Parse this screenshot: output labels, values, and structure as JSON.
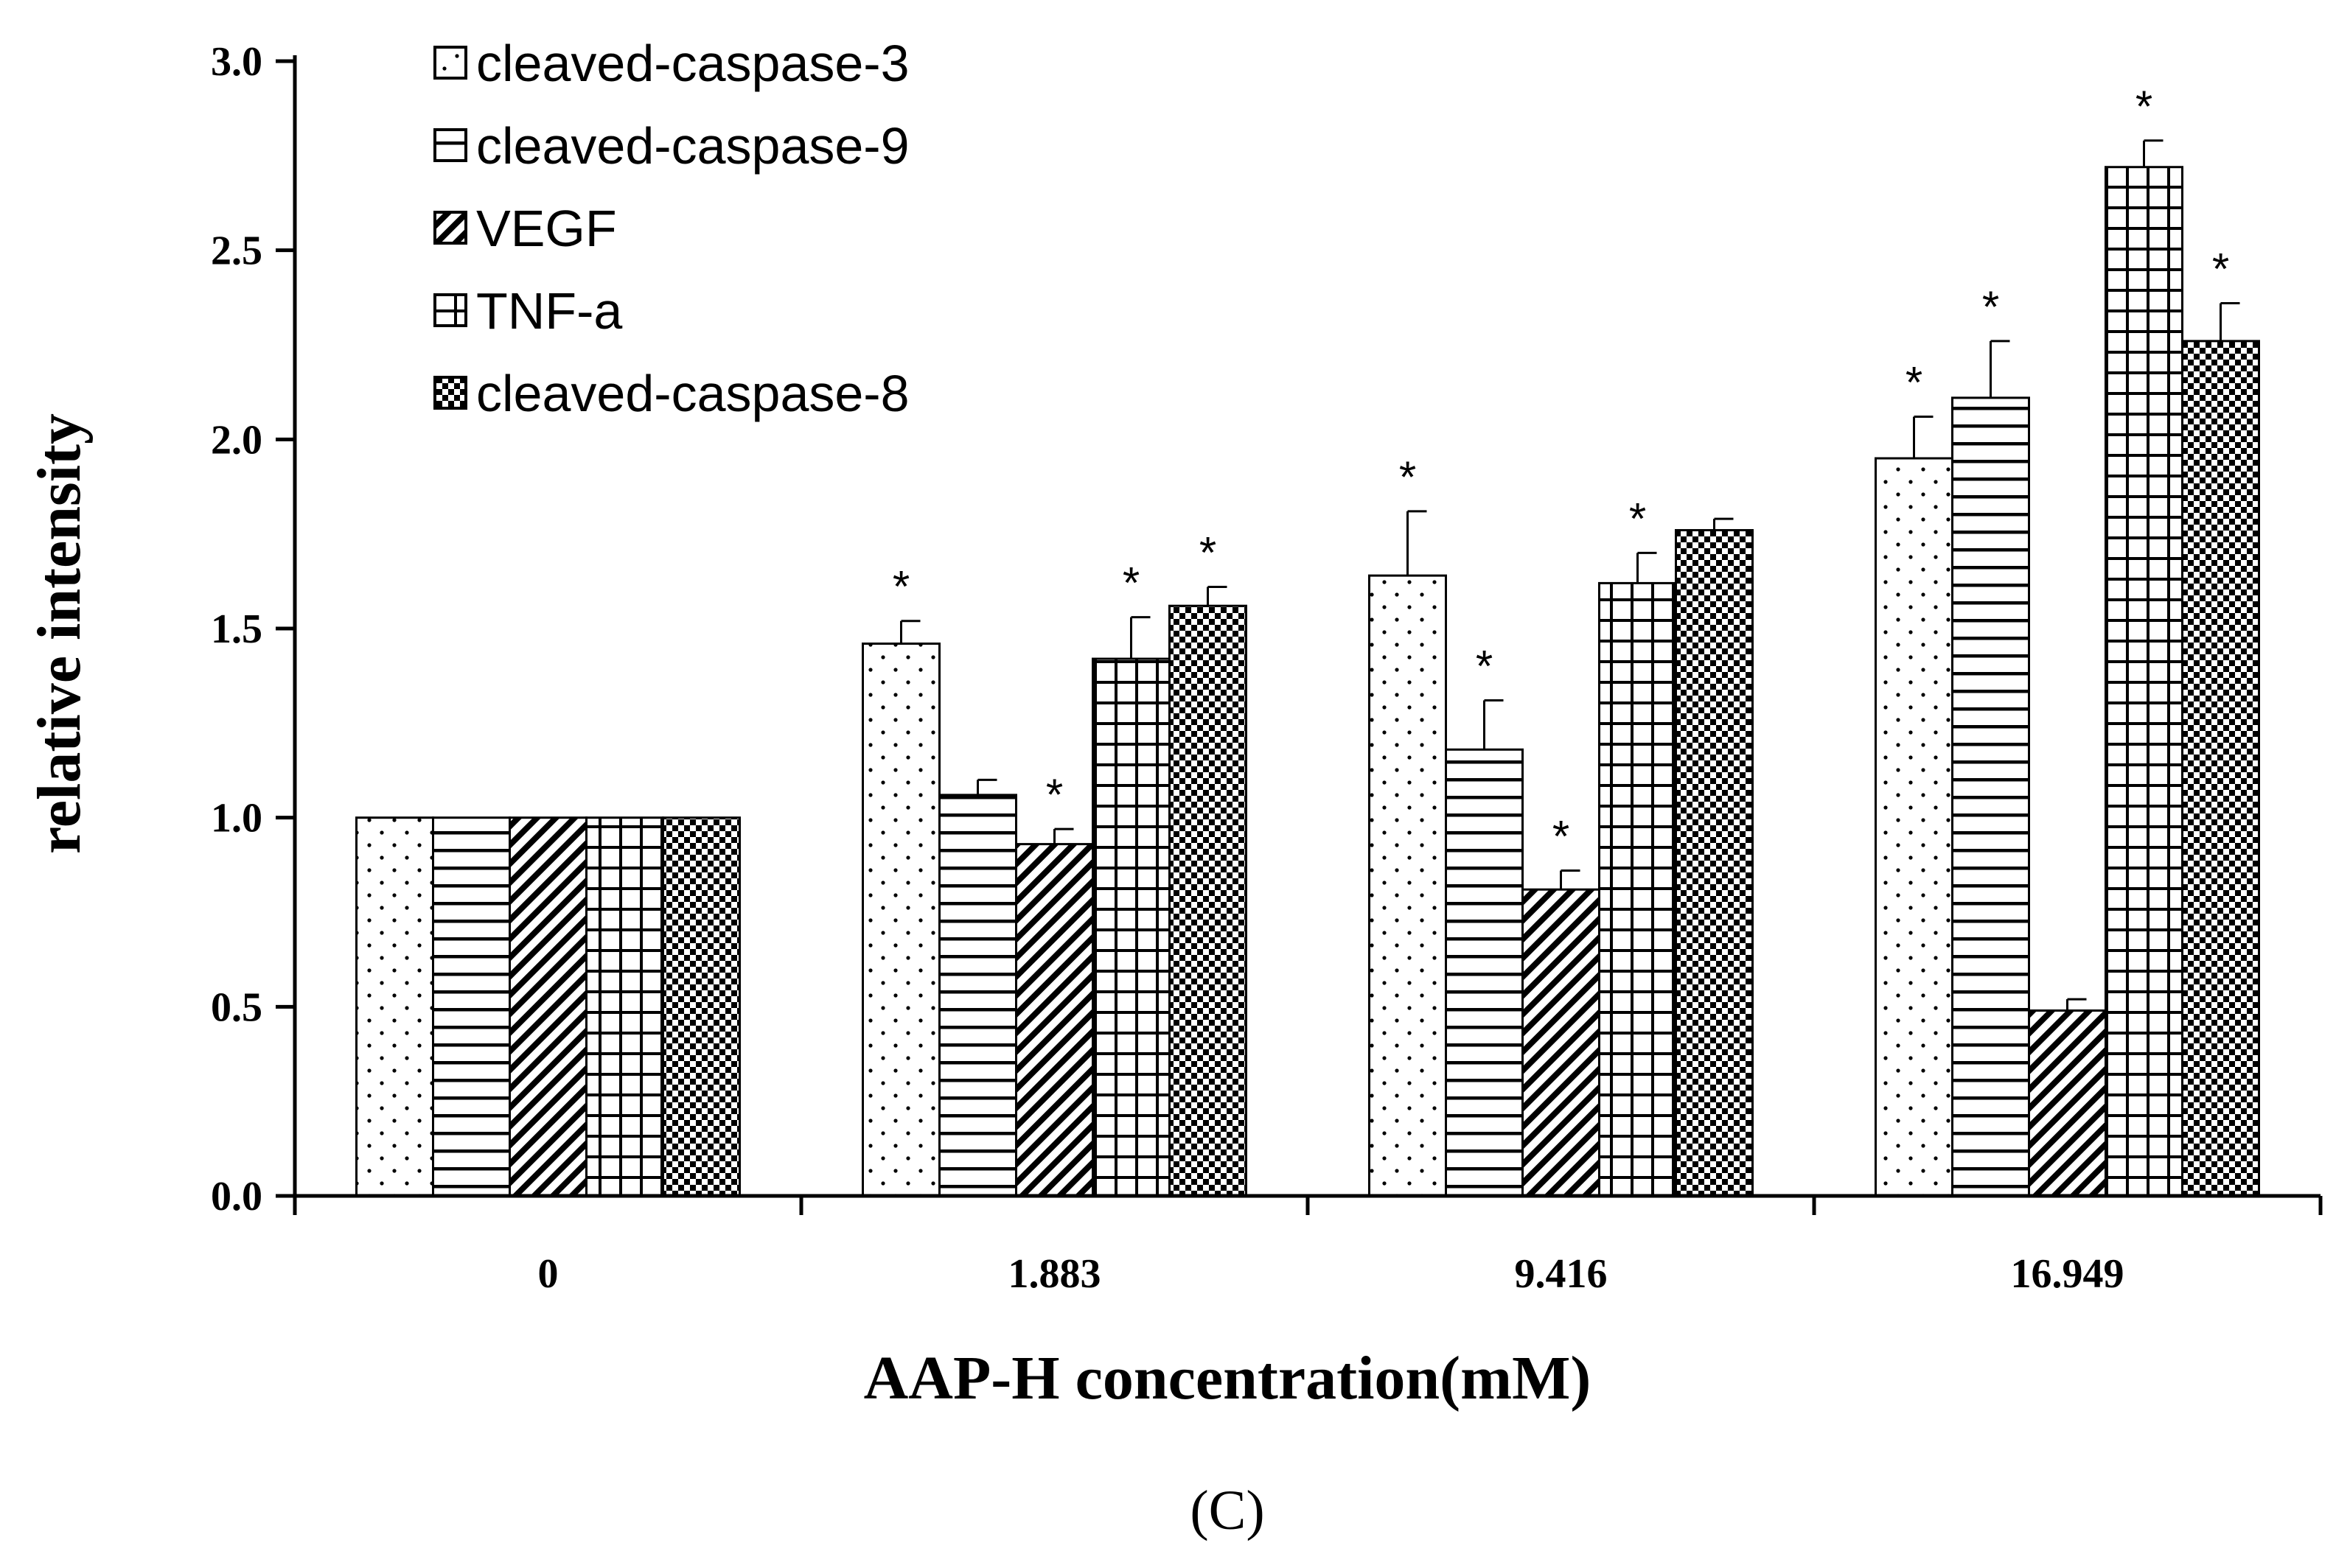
{
  "chart_data": {
    "type": "bar",
    "title": "",
    "xlabel": "AAP-H concentration(mM)",
    "ylabel": "relative intensity",
    "panel_label": "(C)",
    "ylim": [
      0,
      3.0
    ],
    "yticks": [
      "0.0",
      "0.5",
      "1.0",
      "1.5",
      "2.0",
      "2.5",
      "3.0"
    ],
    "categories": [
      "0",
      "1.883",
      "9.416",
      "16.949"
    ],
    "legend_position": "top-left",
    "significance_marker": "*",
    "series": [
      {
        "name": "cleaved-caspase-3",
        "pattern": "dots",
        "values": [
          1.0,
          1.46,
          1.64,
          1.95
        ],
        "errors": [
          0,
          0.06,
          0.17,
          0.11
        ],
        "significant": [
          false,
          true,
          true,
          true
        ]
      },
      {
        "name": "cleaved-caspase-9",
        "pattern": "hlines",
        "values": [
          1.0,
          1.06,
          1.18,
          2.11
        ],
        "errors": [
          0,
          0.04,
          0.13,
          0.15
        ],
        "significant": [
          false,
          false,
          true,
          true
        ]
      },
      {
        "name": "VEGF",
        "pattern": "diagonal",
        "values": [
          1.0,
          0.93,
          0.81,
          0.49
        ],
        "errors": [
          0,
          0.04,
          0.05,
          0.03
        ],
        "significant": [
          false,
          true,
          true,
          false
        ]
      },
      {
        "name": "TNF-a",
        "pattern": "grid",
        "values": [
          1.0,
          1.42,
          1.62,
          2.72
        ],
        "errors": [
          0,
          0.11,
          0.08,
          0.07
        ],
        "significant": [
          false,
          true,
          true,
          true
        ]
      },
      {
        "name": "cleaved-caspase-8",
        "pattern": "checker",
        "values": [
          1.0,
          1.56,
          1.76,
          2.26
        ],
        "errors": [
          0,
          0.05,
          0.03,
          0.1
        ],
        "significant": [
          false,
          true,
          false,
          true
        ]
      }
    ]
  }
}
